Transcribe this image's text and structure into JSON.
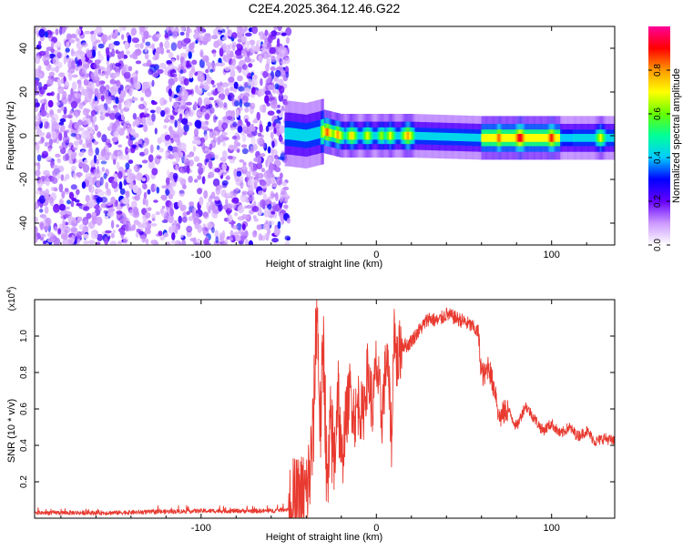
{
  "figure_title": "C2E4.2025.364.12.46.G22",
  "chart_data": [
    {
      "type": "heatmap",
      "title": "C2E4.2025.364.12.46.G22",
      "xlabel": "Height of straight line (km)",
      "ylabel": "Frequency (Hz)",
      "xlim": [
        -195,
        136
      ],
      "ylim": [
        -50,
        50
      ],
      "xticks": [
        -100,
        0,
        100
      ],
      "yticks": [
        -40,
        -20,
        0,
        20,
        40
      ],
      "grid": false,
      "colorbar": {
        "label": "Normalized spectral amplitude",
        "range": [
          0,
          1
        ],
        "ticks": [
          0.0,
          0.2,
          0.4,
          0.6,
          0.8
        ],
        "tick_labels": [
          "0.0",
          "0.2",
          "0.4",
          "0.6",
          "0.8"
        ],
        "colormap": [
          "#ffffff",
          "#cc99ff",
          "#6600ff",
          "#0000ff",
          "#00ccff",
          "#00ff99",
          "#66ff00",
          "#ffff00",
          "#ff9900",
          "#ff0000",
          "#ff0099"
        ]
      },
      "noise_region": {
        "x_range": [
          -195,
          -50
        ],
        "freq_range": [
          -50,
          50
        ],
        "amplitude": "0.05-0.3"
      },
      "signal_band": {
        "x_range": [
          -52,
          136
        ],
        "peak_frequency_hz": [
          {
            "x": -50,
            "f": 1
          },
          {
            "x": -40,
            "f": 0
          },
          {
            "x": -30,
            "f": 2
          },
          {
            "x": -20,
            "f": 0
          },
          {
            "x": 0,
            "f": 0
          },
          {
            "x": 20,
            "f": 0
          },
          {
            "x": 60,
            "f": -1
          },
          {
            "x": 100,
            "f": -1
          },
          {
            "x": 136,
            "f": -1
          }
        ],
        "peak_amplitudes": [
          {
            "x": -28,
            "a": 0.85
          },
          {
            "x": -22,
            "a": 0.8
          },
          {
            "x": -14,
            "a": 0.75
          },
          {
            "x": -5,
            "a": 0.7
          },
          {
            "x": 3,
            "a": 0.65
          },
          {
            "x": 8,
            "a": 0.7
          },
          {
            "x": 18,
            "a": 0.8
          },
          {
            "x": 70,
            "a": 0.85
          },
          {
            "x": 82,
            "a": 0.95
          },
          {
            "x": 100,
            "a": 0.9
          },
          {
            "x": 128,
            "a": 0.7
          }
        ]
      }
    },
    {
      "type": "line",
      "xlabel": "Height of straight line (km)",
      "ylabel": "SNR (10 * v/v)",
      "y_multiplier": "(x10",
      "y_multiplier_exp": "4",
      "y_multiplier_close": ")",
      "xlim": [
        -195,
        136
      ],
      "ylim": [
        0,
        1.2
      ],
      "xticks": [
        -100,
        0,
        100
      ],
      "yticks": [
        0.2,
        0.4,
        0.6,
        0.8,
        1.0
      ],
      "ytick_labels": [
        "0.2",
        "0.4",
        "0.6",
        "0.8",
        "1.0"
      ],
      "grid": false,
      "color": "#e83a30",
      "series": [
        {
          "name": "SNR",
          "x": [
            -195,
            -150,
            -100,
            -60,
            -50,
            -45,
            -40,
            -38,
            -36,
            -34,
            -32,
            -30,
            -28,
            -26,
            -24,
            -22,
            -20,
            -18,
            -15,
            -12,
            -10,
            -8,
            -5,
            -2,
            0,
            3,
            6,
            9,
            10,
            11,
            12,
            14,
            18,
            22,
            26,
            30,
            35,
            40,
            45,
            50,
            55,
            58,
            60,
            62,
            64,
            66,
            68,
            70,
            75,
            80,
            85,
            90,
            95,
            100,
            105,
            110,
            115,
            120,
            125,
            130,
            136
          ],
          "y": [
            0.03,
            0.03,
            0.04,
            0.04,
            0.05,
            0.06,
            0.12,
            0.25,
            0.45,
            1.2,
            0.5,
            0.95,
            0.1,
            0.5,
            0.3,
            0.75,
            0.25,
            0.5,
            0.7,
            0.55,
            0.65,
            0.55,
            0.8,
            0.6,
            0.85,
            0.55,
            0.9,
            0.4,
            1.15,
            0.9,
            0.85,
            0.95,
            0.95,
            1.0,
            1.05,
            1.1,
            1.08,
            1.12,
            1.1,
            1.08,
            1.05,
            1.02,
            0.8,
            0.78,
            0.85,
            0.75,
            0.7,
            0.55,
            0.6,
            0.5,
            0.62,
            0.55,
            0.48,
            0.52,
            0.46,
            0.5,
            0.45,
            0.48,
            0.42,
            0.44,
            0.42
          ]
        }
      ]
    }
  ]
}
